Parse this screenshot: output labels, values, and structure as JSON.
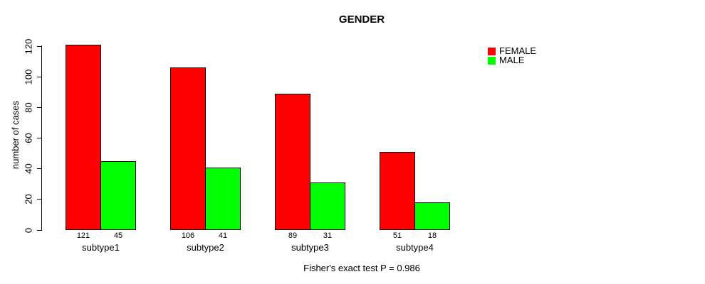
{
  "chart_data": {
    "type": "bar",
    "title": "GENDER",
    "ylabel": "number of cases",
    "xlabel": "",
    "ylim": [
      0,
      120
    ],
    "yticks": [
      0,
      20,
      40,
      60,
      80,
      100,
      120
    ],
    "categories": [
      "subtype1",
      "subtype2",
      "subtype3",
      "subtype4"
    ],
    "series": [
      {
        "name": "FEMALE",
        "color": "#ff0000",
        "values": [
          121,
          106,
          89,
          51
        ]
      },
      {
        "name": "MALE",
        "color": "#00ff00",
        "values": [
          45,
          41,
          31,
          18
        ]
      }
    ],
    "bar_value_labels_shown": true,
    "legend_position": "top-right",
    "grid": false,
    "annotation": "Fisher's exact test P = 0.986",
    "axis_color": "#000000",
    "bar_border_color": "#000000",
    "background_color": "#ffffff"
  }
}
